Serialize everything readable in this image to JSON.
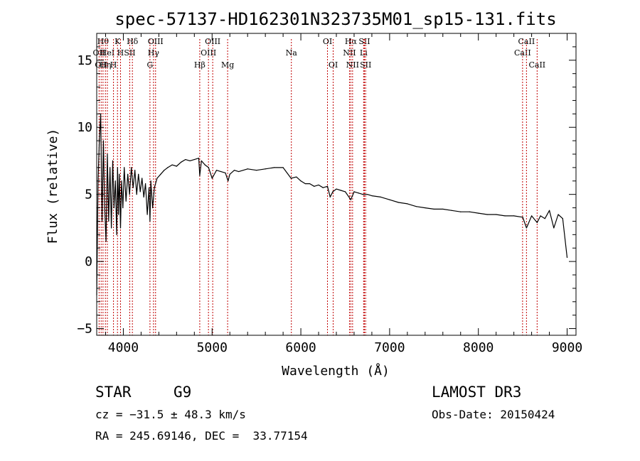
{
  "chart_data": {
    "type": "line",
    "title": "spec-57137-HD162301N323735M01_sp15-131.fits",
    "xlabel": "Wavelength (Å)",
    "ylabel": "Flux (relative)",
    "xlim": [
      3700,
      9100
    ],
    "ylim": [
      -5.5,
      17
    ],
    "x_ticks": [
      4000,
      5000,
      6000,
      7000,
      8000,
      9000
    ],
    "y_ticks": [
      -5,
      0,
      5,
      10,
      15
    ],
    "x_tick_labels": [
      "4000",
      "5000",
      "6000",
      "7000",
      "8000",
      "9000"
    ],
    "y_tick_labels": [
      "−5",
      "0",
      "5",
      "10",
      "15"
    ],
    "series": [
      {
        "name": "spectrum",
        "color": "#000000",
        "x": [
          3700,
          3715,
          3730,
          3745,
          3760,
          3775,
          3790,
          3805,
          3820,
          3835,
          3850,
          3865,
          3880,
          3895,
          3910,
          3925,
          3935,
          3945,
          3955,
          3968,
          3980,
          3995,
          4010,
          4030,
          4050,
          4070,
          4090,
          4110,
          4130,
          4150,
          4170,
          4190,
          4210,
          4230,
          4250,
          4270,
          4290,
          4300,
          4310,
          4330,
          4350,
          4380,
          4420,
          4460,
          4500,
          4550,
          4600,
          4650,
          4700,
          4750,
          4800,
          4850,
          4861,
          4880,
          4920,
          4960,
          5000,
          5050,
          5100,
          5150,
          5180,
          5200,
          5250,
          5300,
          5400,
          5500,
          5600,
          5700,
          5800,
          5890,
          5950,
          6000,
          6050,
          6100,
          6150,
          6200,
          6250,
          6300,
          6330,
          6360,
          6400,
          6450,
          6500,
          6563,
          6600,
          6650,
          6700,
          6750,
          6800,
          6900,
          7000,
          7100,
          7200,
          7300,
          7400,
          7500,
          7600,
          7700,
          7800,
          7900,
          8000,
          8100,
          8200,
          8300,
          8400,
          8500,
          8542,
          8600,
          8662,
          8700,
          8750,
          8800,
          8850,
          8900,
          8950,
          9000
        ],
        "y": [
          -2.5,
          6,
          9,
          11,
          3,
          9,
          4,
          1.5,
          8,
          3,
          7,
          2.5,
          7.5,
          4,
          6,
          2,
          7,
          3.5,
          6.5,
          2.5,
          6,
          4,
          7,
          4.5,
          6.5,
          5,
          7,
          5.5,
          6.8,
          5,
          6.5,
          5.2,
          6.2,
          4.8,
          5.8,
          3.5,
          5.5,
          3.0,
          6.0,
          4.0,
          5.5,
          6.2,
          6.5,
          6.8,
          7.0,
          7.2,
          7.1,
          7.4,
          7.6,
          7.5,
          7.6,
          7.7,
          6.4,
          7.5,
          7.2,
          7.0,
          6.2,
          6.8,
          6.7,
          6.6,
          6.0,
          6.5,
          6.8,
          6.7,
          6.9,
          6.8,
          6.9,
          7.0,
          7.0,
          6.2,
          6.3,
          6.0,
          5.8,
          5.8,
          5.6,
          5.7,
          5.5,
          5.6,
          4.8,
          5.2,
          5.4,
          5.3,
          5.2,
          4.6,
          5.2,
          5.1,
          5.0,
          5.0,
          4.9,
          4.8,
          4.6,
          4.4,
          4.3,
          4.1,
          4.0,
          3.9,
          3.9,
          3.8,
          3.7,
          3.7,
          3.6,
          3.5,
          3.5,
          3.4,
          3.4,
          3.3,
          2.5,
          3.4,
          2.9,
          3.4,
          3.2,
          3.8,
          2.5,
          3.5,
          3.2,
          0.3
        ]
      }
    ],
    "annotations": [
      {
        "x": 3727,
        "label": "OII",
        "row": 2
      },
      {
        "x": 3750,
        "label": "OII",
        "row": 3
      },
      {
        "x": 3771,
        "label": "Hθ",
        "row": 1
      },
      {
        "x": 3798,
        "label": "Hη",
        "row": 3
      },
      {
        "x": 3820,
        "label": "HeI",
        "row": 2
      },
      {
        "x": 3889,
        "label": "H",
        "row": 3
      },
      {
        "x": 3934,
        "label": "K",
        "row": 1
      },
      {
        "x": 3968,
        "label": "H",
        "row": 2
      },
      {
        "x": 4072,
        "label": "SII",
        "row": 2
      },
      {
        "x": 4102,
        "label": "Hδ",
        "row": 1
      },
      {
        "x": 4300,
        "label": "G",
        "row": 3
      },
      {
        "x": 4340,
        "label": "Hγ",
        "row": 2
      },
      {
        "x": 4363,
        "label": "OIII",
        "row": 1
      },
      {
        "x": 4861,
        "label": "Hβ",
        "row": 3
      },
      {
        "x": 4959,
        "label": "OIII",
        "row": 2
      },
      {
        "x": 5007,
        "label": "OIII",
        "row": 1
      },
      {
        "x": 5175,
        "label": "Mg",
        "row": 3
      },
      {
        "x": 5893,
        "label": "Na",
        "row": 2
      },
      {
        "x": 6300,
        "label": "OI",
        "row": 1
      },
      {
        "x": 6364,
        "label": "OI",
        "row": 3
      },
      {
        "x": 6548,
        "label": "NII",
        "row": 2
      },
      {
        "x": 6563,
        "label": "Hα",
        "row": 1
      },
      {
        "x": 6583,
        "label": "NII",
        "row": 3
      },
      {
        "x": 6707,
        "label": "Li",
        "row": 2
      },
      {
        "x": 6716,
        "label": "SII",
        "row": 1
      },
      {
        "x": 6730,
        "label": "SII",
        "row": 3
      },
      {
        "x": 8498,
        "label": "CaII",
        "row": 2
      },
      {
        "x": 8542,
        "label": "CaII",
        "row": 1
      },
      {
        "x": 8662,
        "label": "CaII",
        "row": 3
      }
    ],
    "annotation_color": "#c00000",
    "grid": false
  },
  "info": {
    "class_label": "STAR",
    "subclass": "G9",
    "survey": "LAMOST DR3",
    "redshift_line": "cz = −31.5 ± 48.3 km/s",
    "obs_date_line": "Obs-Date: 20150424",
    "coords_line": "RA = 245.69146, DEC =  33.77154"
  }
}
